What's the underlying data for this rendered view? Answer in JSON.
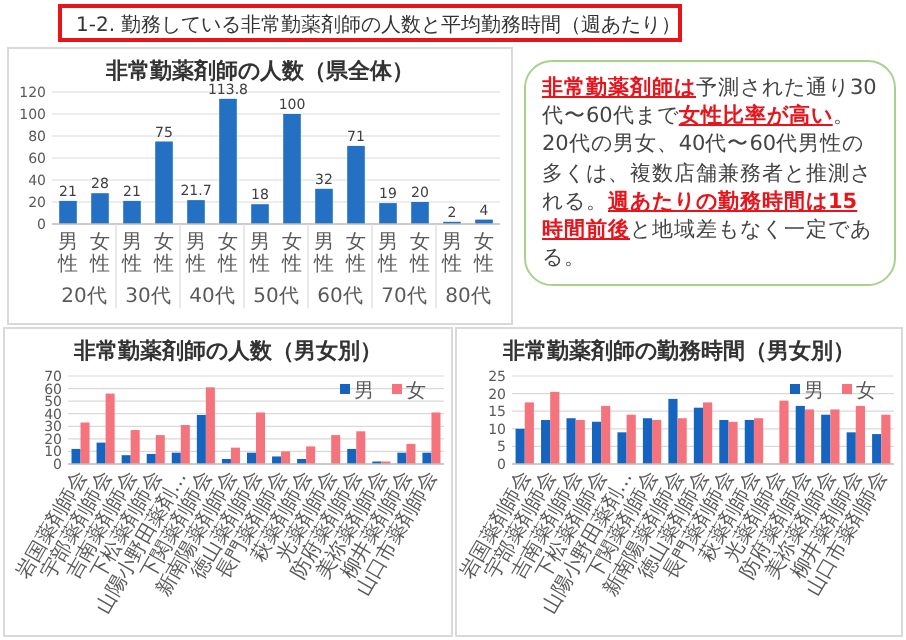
{
  "chart_data": [
    {
      "type": "other",
      "title": "1-2.  勤務している非常勤薬剤師の人数と平均勤務時間（週あたり）"
    },
    {
      "type": "bar",
      "title": "非常勤薬剤師の人数（県全体）",
      "categories": [
        "男性",
        "女性",
        "男性",
        "女性",
        "男性",
        "女性",
        "男性",
        "女性",
        "男性",
        "女性",
        "男性",
        "女性",
        "男性",
        "女性"
      ],
      "values": [
        21,
        28,
        21,
        75,
        21.7,
        113.8,
        18,
        100,
        32,
        71,
        19,
        20,
        2,
        4
      ],
      "color": "#2470c3",
      "data_labels": true,
      "ylim": [
        0,
        120
      ],
      "yticks": [
        0,
        20,
        40,
        60,
        80,
        100,
        120
      ],
      "grid": "y",
      "annotations": [
        "20代",
        "30代",
        "40代",
        "50代",
        "60代",
        "70代",
        "80代"
      ]
    },
    {
      "type": "other",
      "annotations": [
        "非常勤薬剤師は",
        "予測された通り30代〜60代まで",
        "女性比率が高い",
        "。20代の男女、40代〜60代男性の多くは、複数店舗兼務者と推測される。",
        "週あたりの勤務時間は15時間前後",
        "と地域差もなく一定である。"
      ]
    },
    {
      "type": "bar",
      "title": "非常勤薬剤師の人数（男女別）",
      "categories": [
        "岩国薬剤師会",
        "宇部薬剤師会",
        "吉南薬剤師会",
        "下松薬剤師会",
        "山陽小野田薬剤…",
        "下関薬剤師会",
        "新南陽薬剤師会",
        "徳山薬剤師会",
        "長門薬剤師会",
        "萩薬剤師会",
        "光薬剤師会",
        "防府薬剤師会",
        "美祢薬剤師会",
        "柳井薬剤師会",
        "山口市薬剤師会"
      ],
      "series": [
        {
          "name": "男",
          "color": "#1565c0",
          "values": [
            12,
            17,
            7,
            8,
            9,
            39,
            4,
            9,
            6,
            4,
            null,
            12,
            2,
            9,
            9
          ]
        },
        {
          "name": "女",
          "color": "#f4737c",
          "values": [
            33,
            56,
            27,
            23,
            31,
            61,
            13,
            41,
            10,
            14,
            23,
            26,
            2,
            16,
            41
          ]
        }
      ],
      "ylim": [
        0,
        70
      ],
      "yticks": [
        0,
        10,
        20,
        30,
        40,
        50,
        60,
        70
      ],
      "grid": "y",
      "legend": "top right"
    },
    {
      "type": "bar",
      "title": "非常勤薬剤師の勤務時間（男女別）",
      "categories": [
        "岩国薬剤師会",
        "宇部薬剤師会",
        "吉南薬剤師会",
        "下松薬剤師会",
        "山陽小野田薬剤…",
        "下関薬剤師会",
        "新南陽薬剤師会",
        "徳山薬剤師会",
        "長門薬剤師会",
        "萩薬剤師会",
        "光薬剤師会",
        "防府薬剤師会",
        "美祢薬剤師会",
        "柳井薬剤師会",
        "山口市薬剤師会"
      ],
      "series": [
        {
          "name": "男",
          "color": "#1565c0",
          "values": [
            10,
            12.5,
            13,
            12,
            9,
            13,
            18.5,
            16,
            12.5,
            12.5,
            null,
            16.5,
            14,
            9,
            8.5
          ]
        },
        {
          "name": "女",
          "color": "#f4737c",
          "values": [
            17.5,
            20.5,
            12.5,
            16.5,
            14,
            12.5,
            13,
            17.5,
            12,
            13,
            18,
            15.5,
            15.5,
            16.5,
            14
          ]
        }
      ],
      "ylim": [
        0,
        25
      ],
      "yticks": [
        0,
        5,
        10,
        15,
        20,
        25
      ],
      "grid": "y",
      "legend": "top right"
    }
  ]
}
